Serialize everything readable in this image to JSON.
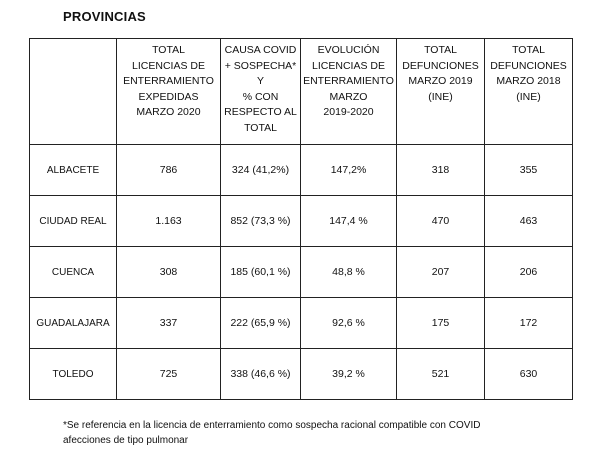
{
  "title": "PROVINCIAS",
  "headers": [
    [],
    [
      "TOTAL",
      "LICENCIAS DE",
      "ENTERRAMIENTO",
      "EXPEDIDAS",
      "MARZO 2020"
    ],
    [
      "CAUSA COVID",
      "+ SOSPECHA*",
      "Y",
      "% CON",
      "RESPECTO AL",
      "TOTAL"
    ],
    [
      "EVOLUCIÓN",
      "LICENCIAS DE",
      "ENTERRAMIENTO",
      "MARZO",
      "2019-2020"
    ],
    [
      "TOTAL",
      "DEFUNCIONES",
      "MARZO 2019",
      "(INE)"
    ],
    [
      "TOTAL",
      "DEFUNCIONES",
      "MARZO 2018",
      "(INE)"
    ]
  ],
  "rows": [
    [
      "ALBACETE",
      "786",
      "324 (41,2%)",
      "147,2%",
      "318",
      "355"
    ],
    [
      "CIUDAD REAL",
      "1.163",
      "852 (73,3 %)",
      "147,4 %",
      "470",
      "463"
    ],
    [
      "CUENCA",
      "308",
      "185 (60,1 %)",
      "48,8 %",
      "207",
      "206"
    ],
    [
      "GUADALAJARA",
      "337",
      "222 (65,9 %)",
      "92,6 %",
      "175",
      "172"
    ],
    [
      "TOLEDO",
      "725",
      "338 (46,6 %)",
      "39,2 %",
      "521",
      "630"
    ]
  ],
  "footnote": [
    "*Se referencia en la licencia de enterramiento como sospecha racional compatible con COVID",
    "afecciones de tipo pulmonar"
  ]
}
